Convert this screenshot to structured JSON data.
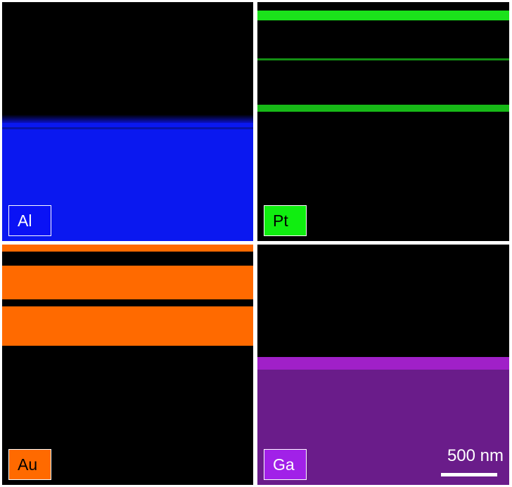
{
  "panels": [
    {
      "element": "Al",
      "badge_color": "#0a12f5",
      "map_color": "#0a18f0"
    },
    {
      "element": "Pt",
      "badge_color": "#10ee10",
      "map_color": "#1be21b"
    },
    {
      "element": "Au",
      "badge_color": "#ff6a00",
      "map_color": "#ff6a00"
    },
    {
      "element": "Ga",
      "badge_color": "#a121e8",
      "map_color": "#7a1fa0"
    }
  ],
  "scale_bar": {
    "label": "500 nm"
  }
}
